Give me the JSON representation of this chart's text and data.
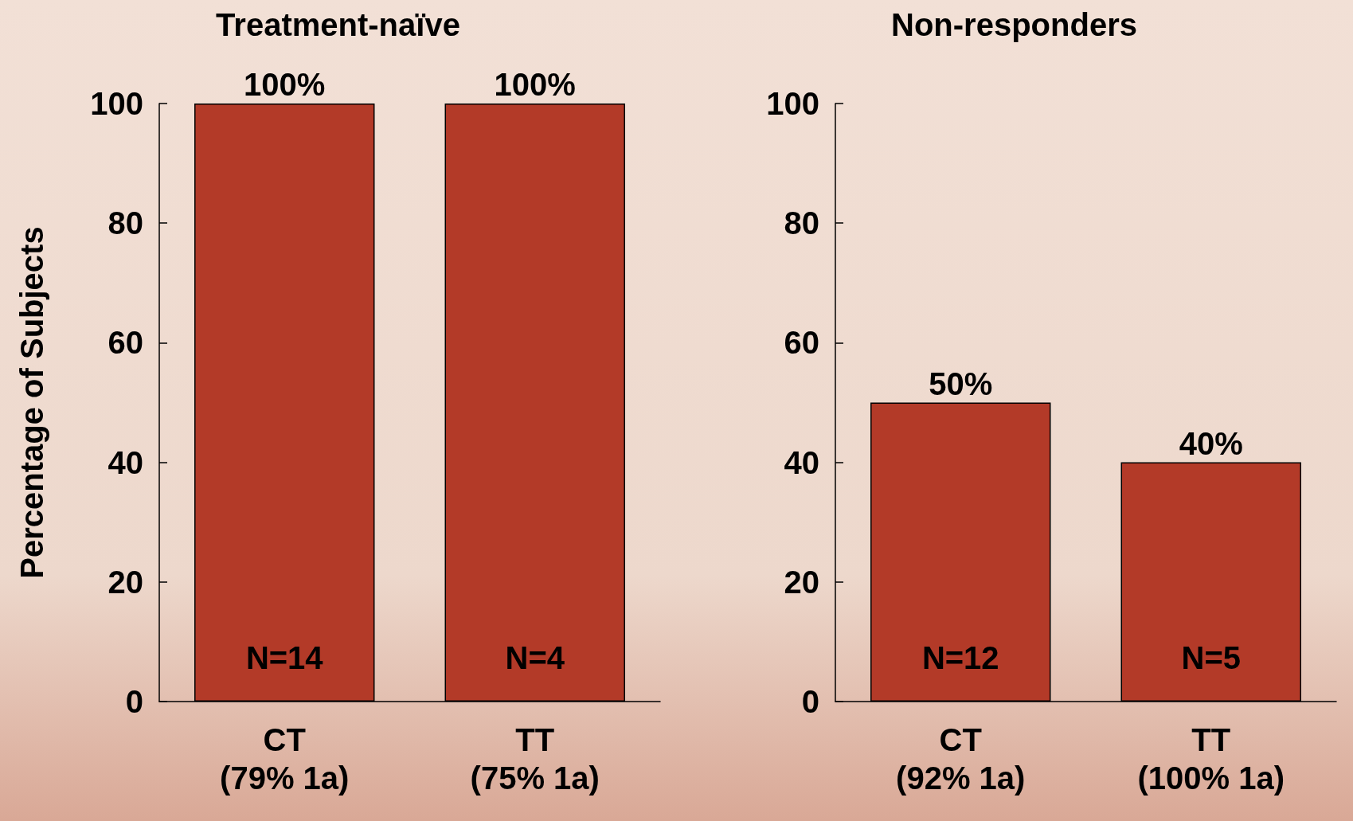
{
  "chart_data": [
    {
      "type": "bar",
      "title": "Treatment-naïve",
      "ylabel": "Percentage of Subjects",
      "categories": [
        "CT\n(79% 1a)",
        "TT\n(75% 1a)"
      ],
      "values": [
        100,
        100
      ],
      "value_labels": [
        "100%",
        "100%"
      ],
      "color": "#b33a28",
      "ylim": [
        0,
        100
      ],
      "yticks": [
        0,
        20,
        40,
        60,
        80,
        100
      ],
      "grid": false,
      "annotations": [
        "N=14",
        "N=4"
      ]
    },
    {
      "type": "bar",
      "title": "Non-responders",
      "categories": [
        "CT\n(92% 1a)",
        "TT\n(100% 1a)"
      ],
      "values": [
        50,
        40
      ],
      "value_labels": [
        "50%",
        "40%"
      ],
      "color": "#b33a28",
      "ylim": [
        0,
        100
      ],
      "yticks": [
        0,
        20,
        40,
        60,
        80,
        100
      ],
      "grid": false,
      "annotations": [
        "N=12",
        "N=5"
      ]
    }
  ]
}
